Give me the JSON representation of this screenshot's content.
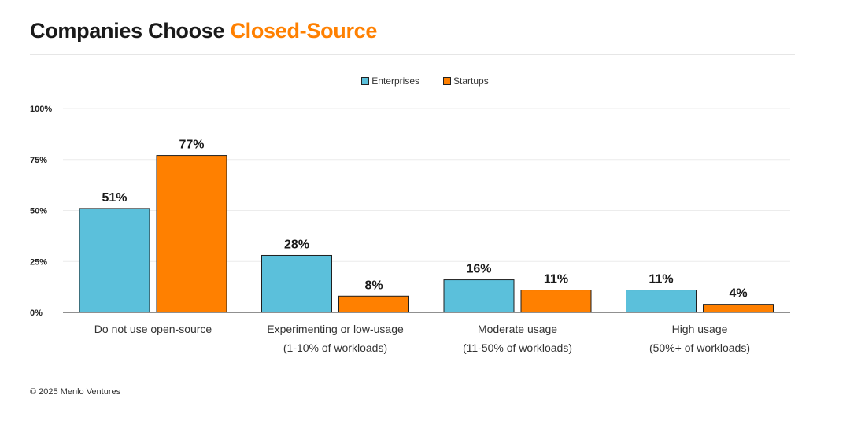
{
  "title": {
    "prefix": "Companies Choose",
    "highlight": "Closed-Source"
  },
  "footer": "© 2025 Menlo Ventures",
  "colors": {
    "enterprises": "#5bc0db",
    "startups": "#ff8000",
    "accent": "#ff8000"
  },
  "chart_data": {
    "type": "bar",
    "categories": [
      [
        "Do not use open-source"
      ],
      [
        "Experimenting or low-usage",
        "(1-10% of workloads)"
      ],
      [
        "Moderate usage",
        "(11-50% of workloads)"
      ],
      [
        "High usage",
        "(50%+ of workloads)"
      ]
    ],
    "series": [
      {
        "name": "Enterprises",
        "values": [
          51,
          28,
          16,
          11
        ],
        "labels": [
          "51%",
          "28%",
          "16%",
          "11%"
        ]
      },
      {
        "name": "Startups",
        "values": [
          77,
          8,
          11,
          4
        ],
        "labels": [
          "77%",
          "8%",
          "11%",
          "4%"
        ]
      }
    ],
    "yticks": [
      {
        "value": 0,
        "label": "0%"
      },
      {
        "value": 25,
        "label": "25%"
      },
      {
        "value": 50,
        "label": "50%"
      },
      {
        "value": 75,
        "label": "75%"
      },
      {
        "value": 100,
        "label": "100%"
      }
    ],
    "ylim": [
      0,
      100
    ],
    "grid": true,
    "legend_position": "top-center"
  }
}
